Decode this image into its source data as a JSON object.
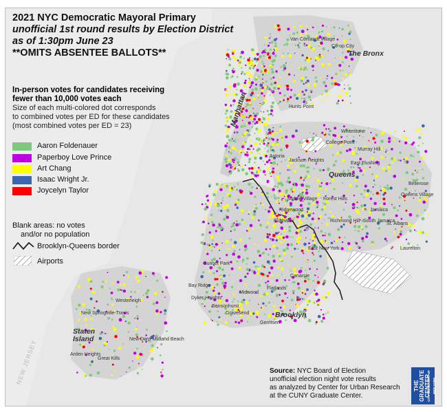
{
  "title": {
    "line1": "2021 NYC Democratic Mayoral Primary",
    "line2": "unofficial 1st round results by Election District",
    "line3": "as of 1:30pm June 23",
    "line4": "**OMITS ABSENTEE BALLOTS**"
  },
  "legend": {
    "heading1": "In-person votes for candidates receiving",
    "heading2": "fewer than 10,000 votes each",
    "sub1": "Size of each multi-colored dot corresponds",
    "sub2": "to combined votes per ED for these candidates",
    "sub3": "(most combined votes per ED = 23)",
    "candidates": [
      {
        "name": "Aaron Foldenauer",
        "color": "#7fc97f"
      },
      {
        "name": "Paperboy Love Prince",
        "color": "#c000e0"
      },
      {
        "name": "Art Chang",
        "color": "#ffff00"
      },
      {
        "name": "Isaac Wright Jr.",
        "color": "#3a67b0"
      },
      {
        "name": "Joycelyn Taylor",
        "color": "#ff0000"
      }
    ],
    "blank1": "Blank areas: no votes",
    "blank2": "and/or no population",
    "border": "Brooklyn-Queens border",
    "airports": "Airports"
  },
  "boroughs": {
    "bronx": "The Bronx",
    "manhattan": "Manhattan",
    "queens": "Queens",
    "brooklyn": "Brooklyn",
    "staten_island": "Staten Island"
  },
  "places": [
    "Van Cortlandt Village",
    "Co-op City",
    "Hunts Point",
    "Whitestone",
    "College Point",
    "Murray Hill",
    "East Flushing",
    "Bellerose",
    "Jackson Heights",
    "Astoria",
    "Queens Village",
    "Middle Village",
    "Forest Hills",
    "Ridgewood",
    "Richmond Hill",
    "Jamaica",
    "South Jamaica",
    "St. Albans",
    "Bushwick",
    "East New York",
    "Laurelton",
    "Westerleigh",
    "New Springville-Travis",
    "Arden Heights",
    "Great Kills",
    "New Dorp-Midland Beach",
    "Gravesend",
    "Midwood",
    "Flatlands",
    "Canarsie",
    "Sunset Park",
    "Bay Ridge",
    "Dyker Heights",
    "Bensonhurst",
    "Gerritsen"
  ],
  "water": {
    "nj": "NEW JERSEY"
  },
  "source": {
    "label": "Source:",
    "line1": "NYC Board of Election",
    "line2": "unofficial election night vote results",
    "line3": "as analyzed by Center for Urban Research",
    "line4": "at the CUNY Graduate Center."
  },
  "logo": {
    "main": "THE GRADUATE CENTER",
    "sub": "CITY UNIVERSITY OF NEW YORK"
  }
}
